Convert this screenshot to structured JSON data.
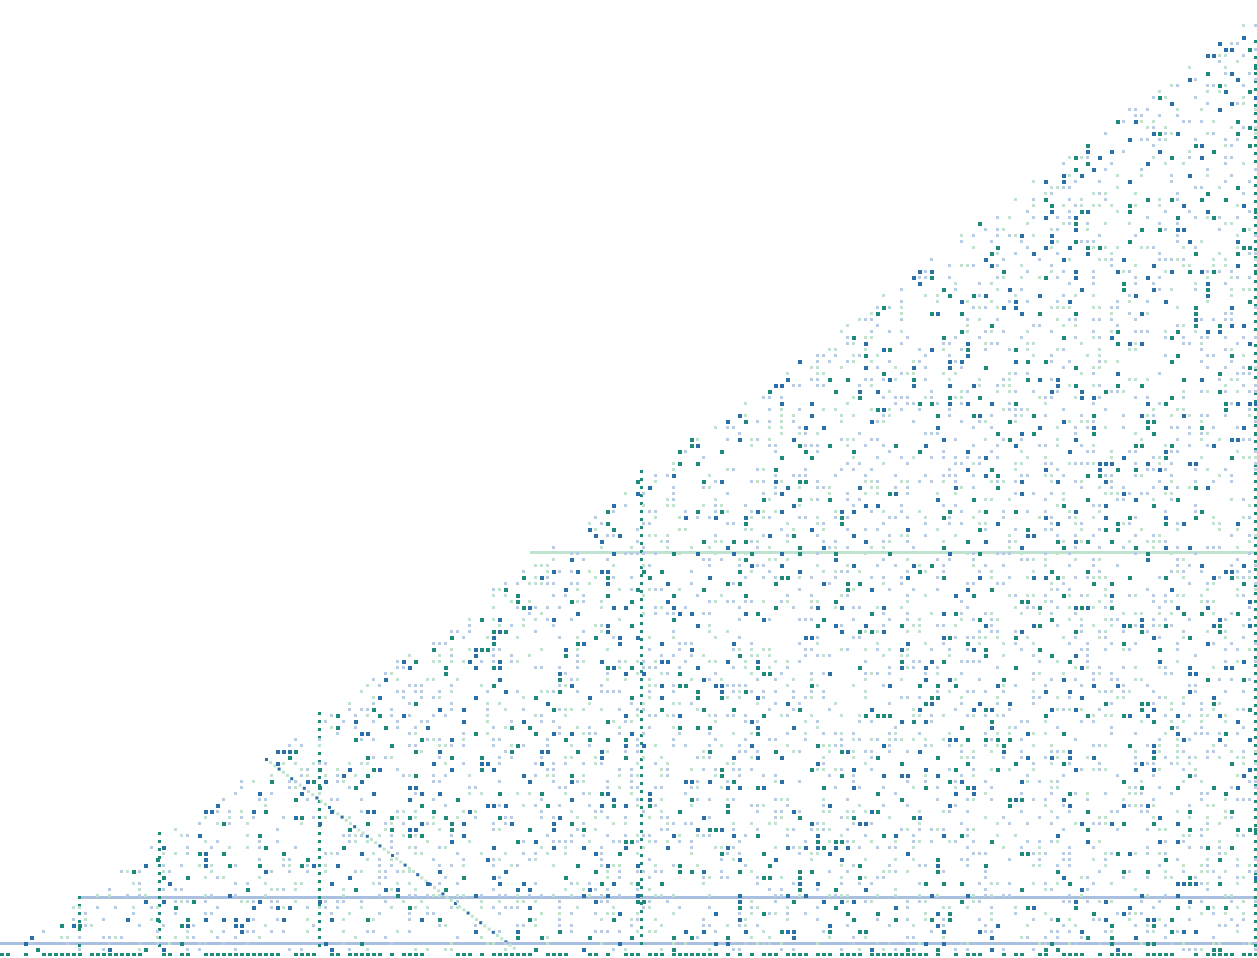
{
  "canvas": {
    "background": "#ffffff",
    "palette": {
      "light_blue": "#b8cce6",
      "light_green": "#bfe3cf",
      "teal": "#1f8a7a",
      "dark_blue": "#2a6fa8",
      "mid_blue": "#a9c0e0"
    }
  }
}
